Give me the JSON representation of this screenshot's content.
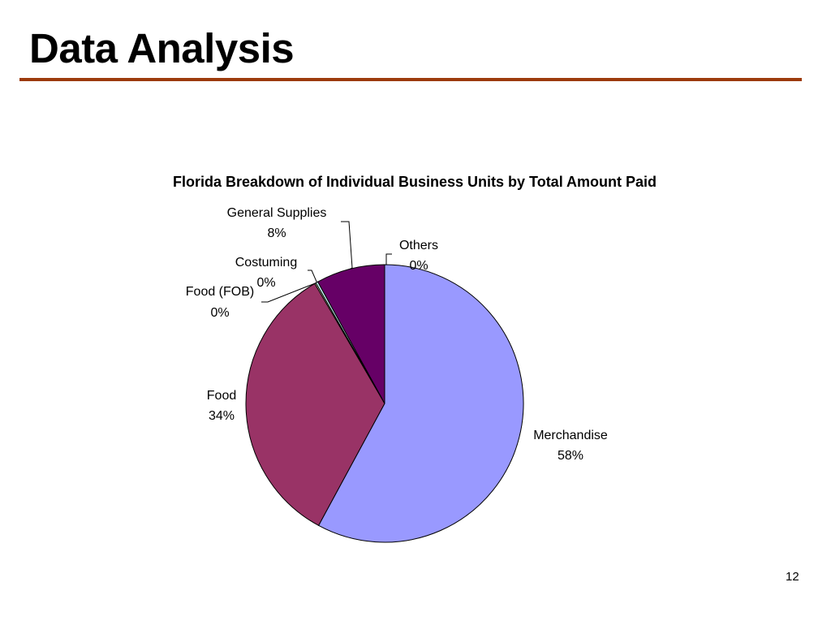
{
  "slide": {
    "title": "Data Analysis",
    "page_number": "12",
    "rule_color": "#9c3a0c"
  },
  "chart_data": {
    "type": "pie",
    "title": "Florida Breakdown of Individual Business Units by Total Amount Paid",
    "slices": [
      {
        "name": "Merchandise",
        "label": "58%",
        "value": 57.9,
        "color": "#9999ff"
      },
      {
        "name": "Food",
        "label": "34%",
        "value": 33.7,
        "color": "#993366"
      },
      {
        "name": "Food (FOB)",
        "label": "0%",
        "value": 0.15,
        "color": "#ffffcc"
      },
      {
        "name": "Costuming",
        "label": "0%",
        "value": 0.25,
        "color": "#ccffff"
      },
      {
        "name": "General Supplies",
        "label": "8%",
        "value": 8.0,
        "color": "#660066"
      },
      {
        "name": "Others",
        "label": "0%",
        "value": 0.0,
        "color": "#ff8080"
      }
    ],
    "start_angle": "12 o'clock",
    "direction": "clockwise"
  }
}
